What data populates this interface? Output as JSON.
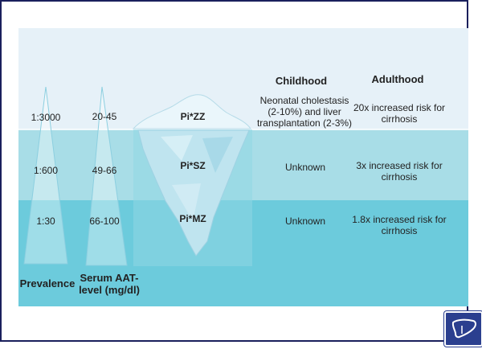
{
  "columns": {
    "childhood_header": "Childhood",
    "adulthood_header": "Adulthood"
  },
  "rows": [
    {
      "prevalence": "1:3000",
      "aat": "20-45",
      "genotype": "Pi*ZZ",
      "childhood": "Neonatal cholestasis (2-10%) and liver transplantation (2-3%)",
      "adulthood": "20x increased risk for cirrhosis"
    },
    {
      "prevalence": "1:600",
      "aat": "49-66",
      "genotype": "Pi*SZ",
      "childhood": "Unknown",
      "adulthood": "3x increased risk for cirrhosis"
    },
    {
      "prevalence": "1:30",
      "aat": "66-100",
      "genotype": "Pi*MZ",
      "childhood": "Unknown",
      "adulthood": "1.8x increased risk for cirrhosis"
    }
  ],
  "axis_labels": {
    "prevalence": "Prevalence",
    "aat_line1": "Serum AAT-",
    "aat_line2": "level (mg/dl)"
  },
  "colors": {
    "frame": "#1a1f5c",
    "band_top": "#e6f1f8",
    "band_middle": "#a8dde7",
    "band_bottom": "#6ccbdc",
    "iceberg": "#bfe4ef",
    "logo": "#2b3f8f"
  },
  "icons": {
    "logo": "liver-icon",
    "prevalence_triangle": "triangle-icon",
    "aat_triangle": "triangle-icon",
    "iceberg": "iceberg-icon"
  }
}
